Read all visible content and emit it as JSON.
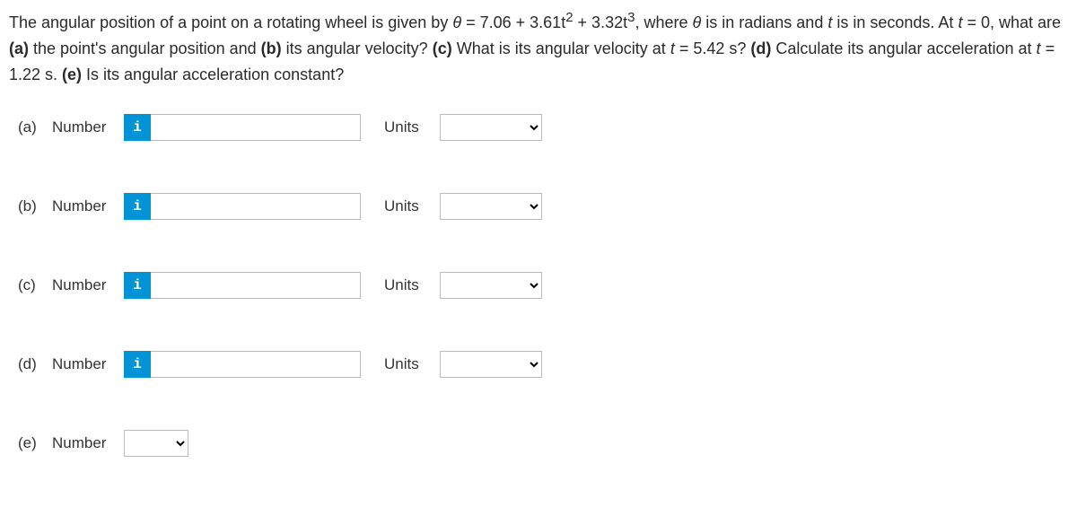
{
  "problem": {
    "text_parts": {
      "p1": "The angular position of a point on a rotating wheel is given by ",
      "theta": "θ",
      "p2": " = 7.06 + 3.61t",
      "sup2": "2",
      "p3": " + 3.32t",
      "sup3": "3",
      "p4": ", where ",
      "p5": " is in radians and ",
      "t_it": "t",
      "p6": " is in seconds. At ",
      "p7": " = 0, what are ",
      "bold_a": "(a)",
      "p8": " the point's angular position and ",
      "bold_b": "(b)",
      "p9": " its angular velocity? ",
      "bold_c": "(c)",
      "p10": " What is its angular velocity at ",
      "p11": " = 5.42 s? ",
      "bold_d": "(d)",
      "p12": " Calculate its angular acceleration at ",
      "p13": " = 1.22 s. ",
      "bold_e": "(e)",
      "p14": " Is its angular acceleration constant?"
    }
  },
  "labels": {
    "number": "Number",
    "units": "Units",
    "info_glyph": "i"
  },
  "rows": {
    "a": {
      "part": "(a)",
      "value": "",
      "units": ""
    },
    "b": {
      "part": "(b)",
      "value": "",
      "units": ""
    },
    "c": {
      "part": "(c)",
      "value": "",
      "units": ""
    },
    "d": {
      "part": "(d)",
      "value": "",
      "units": ""
    },
    "e": {
      "part": "(e)",
      "value": ""
    }
  },
  "colors": {
    "info_bg": "#0093d6",
    "info_fg": "#ffffff",
    "border": "#bbbbbb",
    "text": "#2a2a2a"
  }
}
